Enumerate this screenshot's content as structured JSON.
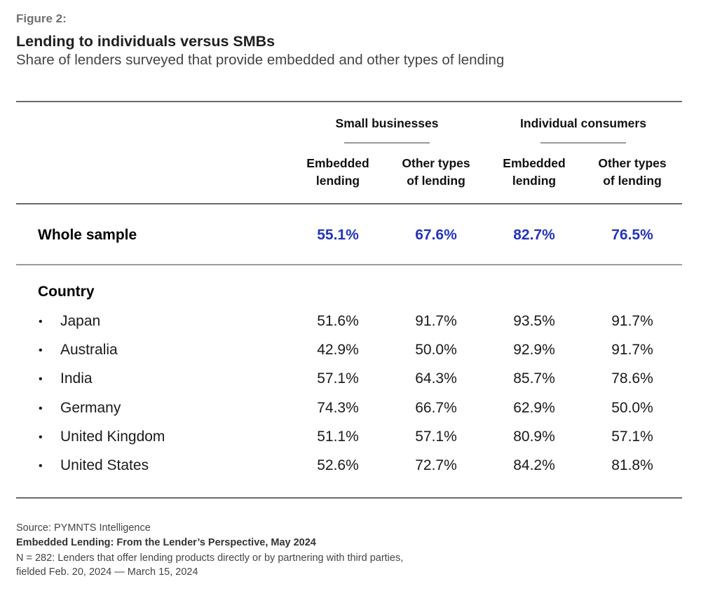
{
  "figure_label": "Figure 2:",
  "chart_data": {
    "type": "table",
    "title": "Lending to individuals versus SMBs",
    "subtitle": "Share of lenders surveyed that provide embedded and other types of lending",
    "column_groups": [
      {
        "label": "Small businesses",
        "columns": [
          "Embedded lending",
          "Other types of lending"
        ]
      },
      {
        "label": "Individual consumers",
        "columns": [
          "Embedded lending",
          "Other types of lending"
        ]
      }
    ],
    "column_headers": [
      {
        "line1": "Embedded",
        "line2": "lending"
      },
      {
        "line1": "Other types",
        "line2": "of lending"
      },
      {
        "line1": "Embedded",
        "line2": "lending"
      },
      {
        "line1": "Other types",
        "line2": "of lending"
      }
    ],
    "whole_sample": {
      "label": "Whole sample",
      "values": [
        "55.1%",
        "67.6%",
        "82.7%",
        "76.5%"
      ]
    },
    "country_section_label": "Country",
    "bullet": "•",
    "rows": [
      {
        "label": "Japan",
        "values": [
          "51.6%",
          "91.7%",
          "93.5%",
          "91.7%"
        ]
      },
      {
        "label": "Australia",
        "values": [
          "42.9%",
          "50.0%",
          "92.9%",
          "91.7%"
        ]
      },
      {
        "label": "India",
        "values": [
          "57.1%",
          "64.3%",
          "85.7%",
          "78.6%"
        ]
      },
      {
        "label": "Germany",
        "values": [
          "74.3%",
          "66.7%",
          "62.9%",
          "50.0%"
        ]
      },
      {
        "label": "United Kingdom",
        "values": [
          "51.1%",
          "57.1%",
          "80.9%",
          "57.1%"
        ]
      },
      {
        "label": "United States",
        "values": [
          "52.6%",
          "72.7%",
          "84.2%",
          "81.8%"
        ]
      }
    ]
  },
  "footer": {
    "source": "Source: PYMNTS Intelligence",
    "report": "Embedded Lending: From the Lender’s Perspective, May 2024",
    "note_line1": "N = 282: Lenders that offer lending products directly or by partnering with third parties,",
    "note_line2": "fielded Feb. 20, 2024 — March 15, 2024"
  },
  "colors": {
    "highlight_blue": "#2435b8",
    "rule_gray": "#6a6a6a"
  }
}
